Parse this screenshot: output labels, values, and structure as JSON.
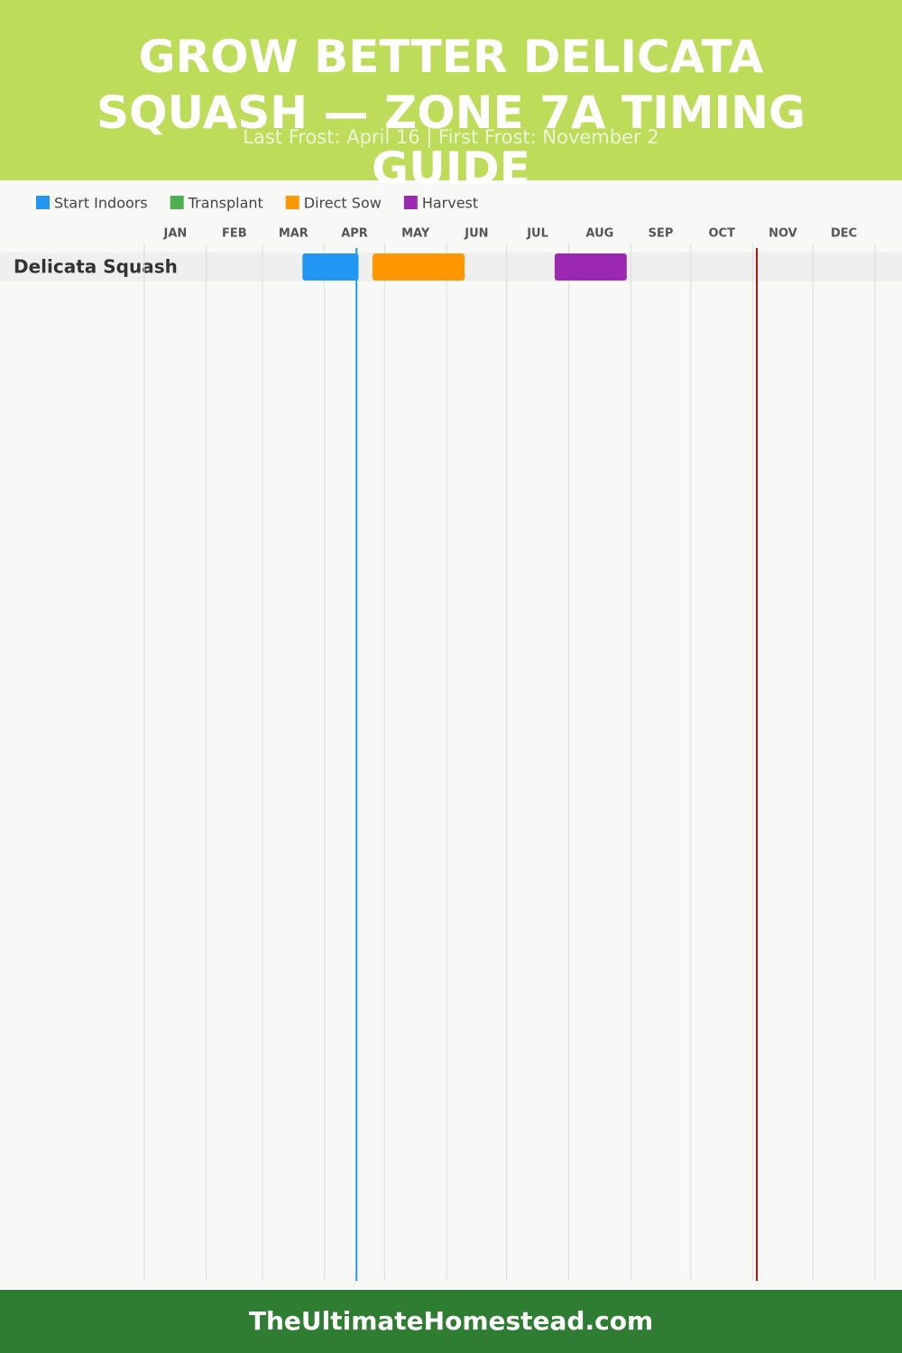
{
  "chart_data": {
    "type": "gantt",
    "title": "GROW BETTER DELICATA SQUASH — ZONE 7A TIMING GUIDE",
    "subtitle": "Last Frost: April 16 | First Frost: November 2",
    "categories": [
      "Delicata Squash"
    ],
    "xlim": [
      0,
      365
    ],
    "xticks": [
      {
        "value": 0,
        "label": "JAN"
      },
      {
        "value": 31,
        "label": "FEB"
      },
      {
        "value": 59,
        "label": "MAR"
      },
      {
        "value": 90,
        "label": "APR"
      },
      {
        "value": 120,
        "label": "MAY"
      },
      {
        "value": 151,
        "label": "JUN"
      },
      {
        "value": 181,
        "label": "JUL"
      },
      {
        "value": 212,
        "label": "AUG"
      },
      {
        "value": 243,
        "label": "SEP"
      },
      {
        "value": 273,
        "label": "OCT"
      },
      {
        "value": 304,
        "label": "NOV"
      },
      {
        "value": 334,
        "label": "DEC"
      }
    ],
    "grid": true,
    "series": [
      {
        "name": "Start Indoors",
        "color": "#2196f3",
        "start": [
          79
        ],
        "end": [
          107
        ]
      },
      {
        "name": "Transplant",
        "color": "#4caf50",
        "start": [
          null
        ],
        "end": [
          null
        ]
      },
      {
        "name": "Direct Sow",
        "color": "#ff9800",
        "start": [
          114
        ],
        "end": [
          160
        ]
      },
      {
        "name": "Harvest",
        "color": "#9c27b0",
        "start": [
          205
        ],
        "end": [
          241
        ]
      }
    ],
    "markers": [
      {
        "value": 106,
        "color": "#2196f3"
      },
      {
        "value": 306,
        "color": "#a31515"
      }
    ]
  },
  "footer": "TheUltimateHomestead.com"
}
